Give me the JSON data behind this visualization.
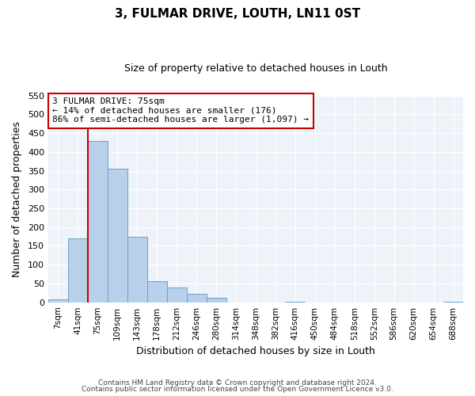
{
  "title": "3, FULMAR DRIVE, LOUTH, LN11 0ST",
  "subtitle": "Size of property relative to detached houses in Louth",
  "xlabel": "Distribution of detached houses by size in Louth",
  "ylabel": "Number of detached properties",
  "bar_labels": [
    "7sqm",
    "41sqm",
    "75sqm",
    "109sqm",
    "143sqm",
    "178sqm",
    "212sqm",
    "246sqm",
    "280sqm",
    "314sqm",
    "348sqm",
    "382sqm",
    "416sqm",
    "450sqm",
    "484sqm",
    "518sqm",
    "552sqm",
    "586sqm",
    "620sqm",
    "654sqm",
    "688sqm"
  ],
  "bar_heights": [
    8,
    170,
    430,
    355,
    175,
    57,
    40,
    22,
    11,
    0,
    0,
    0,
    1,
    0,
    0,
    0,
    0,
    0,
    0,
    0,
    1
  ],
  "bar_color": "#b8d0ea",
  "bar_edge_color": "#6ba3c8",
  "vline_color": "#cc0000",
  "ylim": [
    0,
    550
  ],
  "yticks": [
    0,
    50,
    100,
    150,
    200,
    250,
    300,
    350,
    400,
    450,
    500,
    550
  ],
  "annotation_title": "3 FULMAR DRIVE: 75sqm",
  "annotation_line1": "← 14% of detached houses are smaller (176)",
  "annotation_line2": "86% of semi-detached houses are larger (1,097) →",
  "annotation_box_color": "#cc0000",
  "footer1": "Contains HM Land Registry data © Crown copyright and database right 2024.",
  "footer2": "Contains public sector information licensed under the Open Government Licence v3.0.",
  "bg_color": "#eef2f9"
}
